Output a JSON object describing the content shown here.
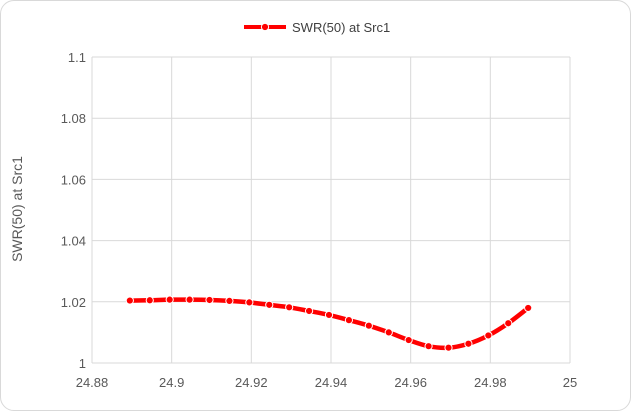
{
  "chart_data": {
    "type": "line",
    "ylabel": "SWR(50) at Src1",
    "xlabel": "",
    "xlim": [
      24.88,
      25
    ],
    "ylim": [
      1,
      1.1
    ],
    "x_ticks": [
      24.88,
      24.9,
      24.92,
      24.94,
      24.96,
      24.98,
      25
    ],
    "x_tick_labels": [
      "24.88",
      "24.9",
      "24.92",
      "24.94",
      "24.96",
      "24.98",
      "25"
    ],
    "y_ticks": [
      1,
      1.02,
      1.04,
      1.06,
      1.08,
      1.1
    ],
    "y_tick_labels": [
      "1",
      "1.02",
      "1.04",
      "1.06",
      "1.08",
      "1.1"
    ],
    "grid": true,
    "legend_position": "top",
    "series": [
      {
        "name": "SWR(50) at Src1",
        "color": "#ff0000",
        "marker": "circle",
        "x": [
          24.8895,
          24.8945,
          24.8995,
          24.9045,
          24.9095,
          24.9145,
          24.9195,
          24.9245,
          24.9295,
          24.9345,
          24.9395,
          24.9445,
          24.9495,
          24.9545,
          24.9595,
          24.9645,
          24.9695,
          24.9745,
          24.9795,
          24.9845,
          24.9895
        ],
        "values": [
          1.0204,
          1.0205,
          1.0207,
          1.0207,
          1.0206,
          1.0203,
          1.0198,
          1.019,
          1.0182,
          1.017,
          1.0157,
          1.014,
          1.0122,
          1.01,
          1.0075,
          1.0055,
          1.005,
          1.0063,
          1.009,
          1.013,
          1.018
        ]
      }
    ]
  }
}
